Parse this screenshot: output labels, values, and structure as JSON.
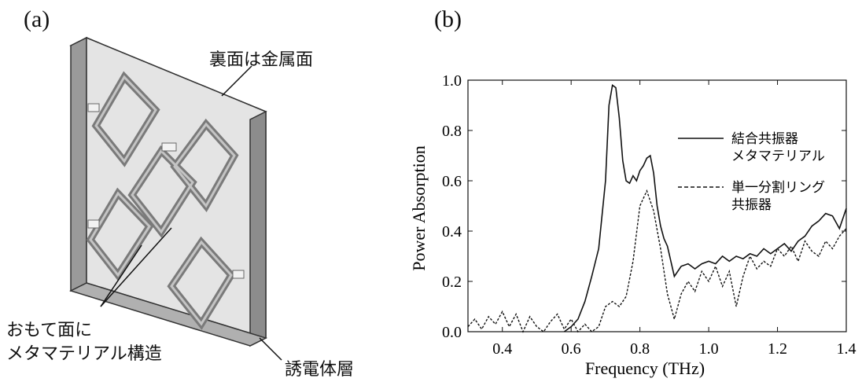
{
  "panel_a": {
    "label": "(a)",
    "callout_back": "裏面は金属面",
    "callout_front_line1": "おもて面に",
    "callout_front_line2": "メタマテリアル構造",
    "callout_dielectric": "誘電体層"
  },
  "panel_b": {
    "label": "(b)"
  },
  "chart_data": {
    "type": "line",
    "xlabel": "Frequency (THz)",
    "ylabel": "Power Absorption",
    "xlim": [
      0.3,
      1.4
    ],
    "ylim": [
      0.0,
      1.0
    ],
    "xticks": [
      "0.4",
      "0.6",
      "0.8",
      "1.0",
      "1.2",
      "1.4"
    ],
    "yticks": [
      "0.0",
      "0.2",
      "0.4",
      "0.6",
      "0.8",
      "1.0"
    ],
    "grid": false,
    "legend_position": "top-right",
    "series": [
      {
        "name": "結合共振器\nメタマテリアル",
        "legend_line1": "結合共振器",
        "legend_line2": "メタマテリアル",
        "style": "solid",
        "x": [
          0.58,
          0.6,
          0.62,
          0.64,
          0.66,
          0.68,
          0.7,
          0.71,
          0.72,
          0.73,
          0.74,
          0.75,
          0.76,
          0.77,
          0.78,
          0.79,
          0.8,
          0.81,
          0.82,
          0.83,
          0.84,
          0.85,
          0.86,
          0.87,
          0.88,
          0.89,
          0.9,
          0.92,
          0.94,
          0.96,
          0.98,
          1.0,
          1.02,
          1.04,
          1.06,
          1.08,
          1.1,
          1.12,
          1.14,
          1.16,
          1.18,
          1.2,
          1.22,
          1.24,
          1.26,
          1.28,
          1.3,
          1.32,
          1.34,
          1.36,
          1.38,
          1.4
        ],
        "y": [
          0.0,
          0.02,
          0.05,
          0.12,
          0.22,
          0.33,
          0.6,
          0.9,
          0.98,
          0.97,
          0.85,
          0.68,
          0.6,
          0.59,
          0.62,
          0.6,
          0.64,
          0.66,
          0.69,
          0.7,
          0.63,
          0.5,
          0.42,
          0.37,
          0.34,
          0.28,
          0.22,
          0.26,
          0.27,
          0.25,
          0.27,
          0.28,
          0.27,
          0.3,
          0.28,
          0.3,
          0.29,
          0.31,
          0.3,
          0.33,
          0.31,
          0.33,
          0.35,
          0.32,
          0.36,
          0.38,
          0.42,
          0.44,
          0.47,
          0.46,
          0.41,
          0.49
        ]
      },
      {
        "name": "単一分割リング\n共振器",
        "legend_line1": "単一分割リング",
        "legend_line2": "共振器",
        "style": "dashed",
        "x": [
          0.3,
          0.32,
          0.34,
          0.36,
          0.38,
          0.4,
          0.42,
          0.44,
          0.46,
          0.48,
          0.5,
          0.52,
          0.54,
          0.56,
          0.58,
          0.6,
          0.62,
          0.64,
          0.66,
          0.68,
          0.7,
          0.72,
          0.74,
          0.76,
          0.78,
          0.8,
          0.82,
          0.84,
          0.86,
          0.88,
          0.9,
          0.92,
          0.94,
          0.96,
          0.98,
          1.0,
          1.02,
          1.04,
          1.06,
          1.08,
          1.1,
          1.12,
          1.14,
          1.16,
          1.18,
          1.2,
          1.22,
          1.24,
          1.26,
          1.28,
          1.3,
          1.32,
          1.34,
          1.36,
          1.38,
          1.4
        ],
        "y": [
          0.02,
          0.05,
          0.01,
          0.06,
          0.03,
          0.08,
          0.02,
          0.07,
          0.0,
          0.06,
          0.02,
          0.0,
          0.04,
          0.07,
          0.01,
          0.05,
          0.0,
          0.03,
          0.0,
          0.02,
          0.1,
          0.12,
          0.1,
          0.14,
          0.28,
          0.5,
          0.56,
          0.48,
          0.33,
          0.15,
          0.05,
          0.15,
          0.2,
          0.16,
          0.24,
          0.2,
          0.26,
          0.18,
          0.24,
          0.1,
          0.22,
          0.3,
          0.25,
          0.28,
          0.26,
          0.33,
          0.3,
          0.34,
          0.28,
          0.36,
          0.32,
          0.3,
          0.36,
          0.33,
          0.38,
          0.41
        ]
      }
    ]
  }
}
